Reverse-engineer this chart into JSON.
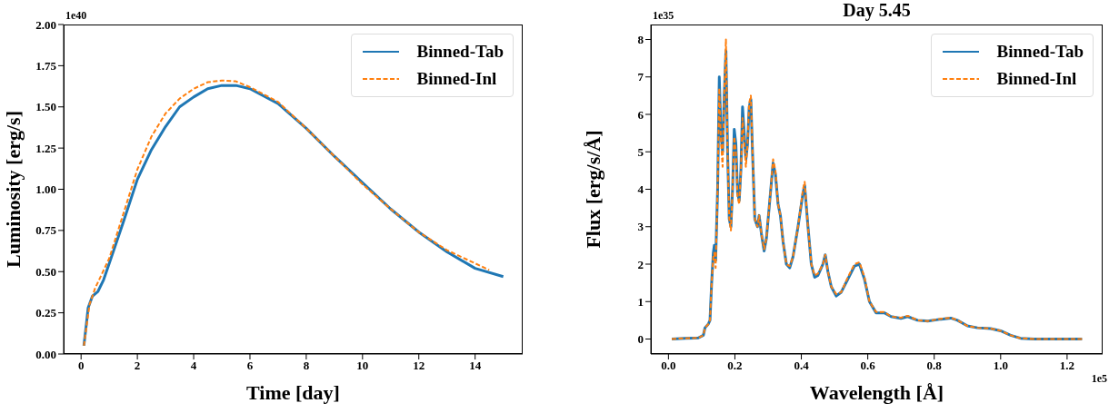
{
  "chart_data": [
    {
      "type": "line",
      "xlabel": "Time [day]",
      "ylabel": "Luminosity [erg/s]",
      "annotations": [
        "1e40"
      ],
      "xlim": [
        -0.62,
        15.69
      ],
      "xticks": [
        0,
        2,
        4,
        6,
        8,
        10,
        12,
        14
      ],
      "ylim": [
        0,
        2
      ],
      "yticks": [
        {
          "value": 0,
          "label": "0.00"
        },
        {
          "value": 0.25,
          "label": "0.25"
        },
        {
          "value": 0.5,
          "label": "0.50"
        },
        {
          "value": 0.75,
          "label": "0.75"
        },
        {
          "value": 1,
          "label": "1.00"
        },
        {
          "value": 1.25,
          "label": "1.25"
        },
        {
          "value": 1.5,
          "label": "1.50"
        },
        {
          "value": 1.75,
          "label": "1.75"
        },
        {
          "value": 2,
          "label": "2.00"
        }
      ],
      "grid": false,
      "legend": "top right",
      "marker": "none",
      "series": [
        {
          "name": "Binned-Tab",
          "color": "#1f77b4",
          "line_style": "solid",
          "x": [
            0.1,
            0.2,
            0.25,
            0.4,
            0.6,
            0.8,
            1,
            1.5,
            2,
            2.5,
            3,
            3.5,
            4,
            4.5,
            5,
            5.5,
            6,
            7,
            8,
            9,
            10,
            11,
            12,
            13,
            14,
            15
          ],
          "values": [
            0.05,
            0.2,
            0.28,
            0.35,
            0.38,
            0.45,
            0.55,
            0.8,
            1.06,
            1.24,
            1.38,
            1.5,
            1.56,
            1.61,
            1.63,
            1.63,
            1.61,
            1.52,
            1.37,
            1.2,
            1.04,
            0.88,
            0.74,
            0.62,
            0.52,
            0.47
          ]
        },
        {
          "name": "Binned-Inl",
          "color": "#ff7f0e",
          "line_style": "dashed",
          "x": [
            0.1,
            0.3,
            0.5,
            1,
            1.5,
            2,
            2.5,
            3,
            3.5,
            4,
            4.5,
            5,
            5.5,
            6,
            7,
            8,
            9,
            10,
            11,
            12,
            13,
            14,
            14.5
          ],
          "values": [
            0.05,
            0.3,
            0.4,
            0.58,
            0.85,
            1.12,
            1.32,
            1.46,
            1.55,
            1.61,
            1.65,
            1.66,
            1.655,
            1.62,
            1.53,
            1.37,
            1.2,
            1.03,
            0.88,
            0.74,
            0.63,
            0.55,
            0.51
          ]
        }
      ]
    },
    {
      "type": "line",
      "title": "Day 5.45",
      "xlabel": "Wavelength [Å]",
      "ylabel": "Flux [erg/s/Å]",
      "annotations": [
        "1e35",
        "1e5"
      ],
      "xlim": [
        -0.053,
        1.307
      ],
      "xticks": [
        {
          "value": 0,
          "label": "0.0"
        },
        {
          "value": 0.2,
          "label": "0.2"
        },
        {
          "value": 0.4,
          "label": "0.4"
        },
        {
          "value": 0.6,
          "label": "0.6"
        },
        {
          "value": 0.8,
          "label": "0.8"
        },
        {
          "value": 1,
          "label": "1.0"
        },
        {
          "value": 1.2,
          "label": "1.2"
        }
      ],
      "ylim": [
        -0.4,
        8.4
      ],
      "yticks": [
        0,
        1,
        2,
        3,
        4,
        5,
        6,
        7,
        8
      ],
      "grid": false,
      "legend": "top right",
      "marker": "none",
      "series": [
        {
          "name": "Binned-Tab",
          "color": "#1f77b4",
          "line_style": "solid",
          "x": [
            0.01,
            0.05,
            0.09,
            0.105,
            0.11,
            0.12,
            0.125,
            0.13,
            0.135,
            0.138,
            0.142,
            0.148,
            0.153,
            0.158,
            0.163,
            0.168,
            0.173,
            0.178,
            0.183,
            0.188,
            0.193,
            0.198,
            0.203,
            0.208,
            0.213,
            0.218,
            0.223,
            0.228,
            0.233,
            0.238,
            0.243,
            0.248,
            0.253,
            0.26,
            0.268,
            0.273,
            0.28,
            0.288,
            0.295,
            0.305,
            0.315,
            0.322,
            0.33,
            0.337,
            0.345,
            0.355,
            0.365,
            0.375,
            0.39,
            0.405,
            0.41,
            0.42,
            0.43,
            0.44,
            0.45,
            0.465,
            0.472,
            0.48,
            0.49,
            0.505,
            0.52,
            0.54,
            0.56,
            0.575,
            0.59,
            0.605,
            0.625,
            0.65,
            0.67,
            0.7,
            0.72,
            0.75,
            0.78,
            0.82,
            0.85,
            0.87,
            0.9,
            0.93,
            0.97,
            1.0,
            1.03,
            1.06,
            1.1,
            1.245
          ],
          "values": [
            0,
            0.02,
            0.03,
            0.1,
            0.3,
            0.4,
            0.5,
            1.5,
            2.3,
            2.5,
            2.1,
            4.0,
            7.0,
            5.5,
            5.0,
            6.5,
            7.7,
            5.0,
            3.2,
            3.0,
            4.0,
            5.6,
            5.2,
            3.9,
            3.7,
            4.5,
            6.2,
            5.5,
            4.8,
            5.2,
            6.2,
            6.4,
            5.0,
            3.2,
            3.0,
            3.3,
            2.8,
            2.35,
            2.7,
            3.7,
            4.7,
            4.4,
            3.6,
            3.3,
            2.6,
            2.0,
            1.9,
            2.2,
            3.0,
            3.9,
            4.1,
            3.0,
            2.0,
            1.65,
            1.7,
            2.0,
            2.25,
            1.8,
            1.4,
            1.15,
            1.25,
            1.6,
            1.95,
            2.0,
            1.6,
            1.0,
            0.7,
            0.7,
            0.6,
            0.55,
            0.6,
            0.5,
            0.48,
            0.53,
            0.56,
            0.5,
            0.35,
            0.3,
            0.28,
            0.22,
            0.1,
            0.02,
            0,
            0
          ]
        },
        {
          "name": "Binned-Inl",
          "color": "#ff7f0e",
          "line_style": "dashed",
          "x": [
            0.01,
            0.05,
            0.09,
            0.105,
            0.11,
            0.12,
            0.125,
            0.13,
            0.135,
            0.138,
            0.142,
            0.148,
            0.153,
            0.158,
            0.163,
            0.168,
            0.173,
            0.178,
            0.183,
            0.188,
            0.193,
            0.198,
            0.203,
            0.208,
            0.213,
            0.218,
            0.223,
            0.228,
            0.233,
            0.238,
            0.243,
            0.248,
            0.253,
            0.26,
            0.268,
            0.273,
            0.28,
            0.288,
            0.295,
            0.305,
            0.315,
            0.322,
            0.33,
            0.337,
            0.345,
            0.355,
            0.365,
            0.375,
            0.39,
            0.405,
            0.41,
            0.42,
            0.43,
            0.44,
            0.45,
            0.465,
            0.472,
            0.48,
            0.49,
            0.505,
            0.52,
            0.54,
            0.56,
            0.575,
            0.59,
            0.605,
            0.625,
            0.65,
            0.67,
            0.7,
            0.72,
            0.75,
            0.78,
            0.82,
            0.85,
            0.87,
            0.9,
            0.93,
            0.97,
            1.0,
            1.03,
            1.06,
            1.1,
            1.245
          ],
          "values": [
            0,
            0.02,
            0.03,
            0.1,
            0.3,
            0.4,
            0.5,
            1.5,
            2.2,
            2.3,
            1.9,
            4.0,
            6.7,
            5.3,
            4.6,
            6.5,
            8.0,
            5.0,
            3.2,
            2.9,
            4.0,
            5.4,
            5.0,
            3.8,
            3.6,
            4.5,
            5.9,
            5.3,
            4.6,
            5.2,
            6.3,
            6.5,
            5.0,
            3.2,
            3.0,
            3.3,
            2.8,
            2.4,
            2.7,
            3.7,
            4.8,
            4.5,
            3.6,
            3.3,
            2.6,
            2.0,
            1.95,
            2.2,
            3.0,
            4.0,
            4.2,
            3.0,
            2.0,
            1.7,
            1.75,
            2.0,
            2.25,
            1.8,
            1.4,
            1.2,
            1.25,
            1.65,
            2.0,
            2.05,
            1.65,
            1.0,
            0.72,
            0.72,
            0.6,
            0.57,
            0.62,
            0.5,
            0.48,
            0.54,
            0.57,
            0.5,
            0.35,
            0.3,
            0.28,
            0.22,
            0.1,
            0.02,
            0,
            0
          ]
        }
      ]
    }
  ]
}
